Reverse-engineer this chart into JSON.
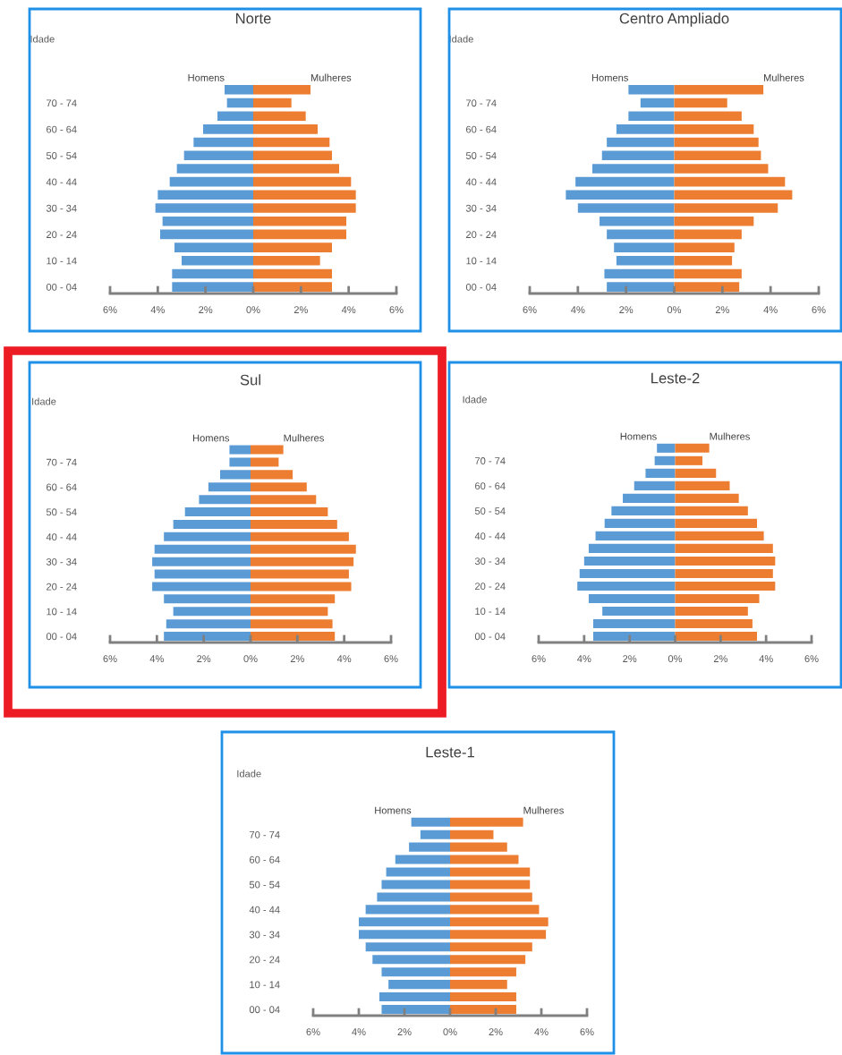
{
  "chart_data": [
    {
      "type": "bar",
      "orientation": "horizontal",
      "stacked": true,
      "title": "Norte",
      "ylabel": "Idade",
      "categories": [
        null,
        "70 - 74",
        null,
        "60 - 64",
        null,
        "50 - 54",
        null,
        "40 - 44",
        null,
        "30 - 34",
        null,
        "20 - 24",
        null,
        "10 - 14",
        null,
        "00 - 04"
      ],
      "series": [
        {
          "name": "Homens",
          "color": "#5b9bd5",
          "values": [
            -1.2,
            -1.1,
            -1.5,
            -2.1,
            -2.5,
            -2.9,
            -3.2,
            -3.5,
            -4.0,
            -4.1,
            -3.8,
            -3.9,
            -3.3,
            -3.0,
            -3.4,
            -3.4
          ]
        },
        {
          "name": "Mulheres",
          "color": "#ed7d31",
          "values": [
            2.4,
            1.6,
            2.2,
            2.7,
            3.2,
            3.3,
            3.6,
            4.1,
            4.3,
            4.3,
            3.9,
            3.9,
            3.3,
            2.8,
            3.3,
            3.3
          ]
        }
      ],
      "xlim": [
        -6,
        6
      ],
      "xticks": [
        {
          "value": -6,
          "label": "6%"
        },
        {
          "value": -4,
          "label": "4%"
        },
        {
          "value": -2,
          "label": "2%"
        },
        {
          "value": 0,
          "label": "0%"
        },
        {
          "value": 2,
          "label": "2%"
        },
        {
          "value": 4,
          "label": "4%"
        },
        {
          "value": 6,
          "label": "6%"
        }
      ]
    },
    {
      "type": "bar",
      "orientation": "horizontal",
      "stacked": true,
      "title": "Centro Ampliado",
      "ylabel": "Idade",
      "categories": [
        null,
        "70 - 74",
        null,
        "60 - 64",
        null,
        "50 - 54",
        null,
        "40 - 44",
        null,
        "30 - 34",
        null,
        "20 - 24",
        null,
        "10 - 14",
        null,
        "00 - 04"
      ],
      "series": [
        {
          "name": "Homens",
          "color": "#5b9bd5",
          "values": [
            -1.9,
            -1.4,
            -1.9,
            -2.4,
            -2.8,
            -3.0,
            -3.4,
            -4.1,
            -4.5,
            -4.0,
            -3.1,
            -2.8,
            -2.5,
            -2.4,
            -2.9,
            -2.8
          ]
        },
        {
          "name": "Mulheres",
          "color": "#ed7d31",
          "values": [
            3.7,
            2.2,
            2.8,
            3.3,
            3.5,
            3.6,
            3.9,
            4.6,
            4.9,
            4.3,
            3.3,
            2.8,
            2.5,
            2.4,
            2.8,
            2.7
          ]
        }
      ],
      "xlim": [
        -6,
        6
      ],
      "xticks": [
        {
          "value": -6,
          "label": "6%"
        },
        {
          "value": -4,
          "label": "4%"
        },
        {
          "value": -2,
          "label": "2%"
        },
        {
          "value": 0,
          "label": "0%"
        },
        {
          "value": 2,
          "label": "2%"
        },
        {
          "value": 4,
          "label": "4%"
        },
        {
          "value": 6,
          "label": "6%"
        }
      ]
    },
    {
      "type": "bar",
      "orientation": "horizontal",
      "stacked": true,
      "title": "Sul",
      "ylabel": "Idade",
      "categories": [
        null,
        "70 - 74",
        null,
        "60 - 64",
        null,
        "50 - 54",
        null,
        "40 - 44",
        null,
        "30 - 34",
        null,
        "20 - 24",
        null,
        "10 - 14",
        null,
        "00 - 04"
      ],
      "series": [
        {
          "name": "Homens",
          "color": "#5b9bd5",
          "values": [
            -0.9,
            -0.9,
            -1.3,
            -1.8,
            -2.2,
            -2.8,
            -3.3,
            -3.7,
            -4.1,
            -4.2,
            -4.1,
            -4.2,
            -3.7,
            -3.3,
            -3.6,
            -3.7
          ]
        },
        {
          "name": "Mulheres",
          "color": "#ed7d31",
          "values": [
            1.4,
            1.2,
            1.8,
            2.4,
            2.8,
            3.3,
            3.7,
            4.2,
            4.5,
            4.4,
            4.2,
            4.3,
            3.6,
            3.3,
            3.5,
            3.6
          ]
        }
      ],
      "xlim": [
        -6,
        6
      ],
      "xticks": [
        {
          "value": -6,
          "label": "6%"
        },
        {
          "value": -4,
          "label": "4%"
        },
        {
          "value": -2,
          "label": "2%"
        },
        {
          "value": 0,
          "label": "0%"
        },
        {
          "value": 2,
          "label": "2%"
        },
        {
          "value": 4,
          "label": "4%"
        },
        {
          "value": 6,
          "label": "6%"
        }
      ]
    },
    {
      "type": "bar",
      "orientation": "horizontal",
      "stacked": true,
      "title": "Leste-2",
      "ylabel": "Idade",
      "categories": [
        null,
        "70 - 74",
        null,
        "60 - 64",
        null,
        "50 - 54",
        null,
        "40 - 44",
        null,
        "30 - 34",
        null,
        "20 - 24",
        null,
        "10 - 14",
        null,
        "00 - 04"
      ],
      "series": [
        {
          "name": "Homens",
          "color": "#5b9bd5",
          "values": [
            -0.8,
            -0.9,
            -1.3,
            -1.8,
            -2.3,
            -2.8,
            -3.1,
            -3.5,
            -3.8,
            -4.0,
            -4.2,
            -4.3,
            -3.8,
            -3.2,
            -3.6,
            -3.6
          ]
        },
        {
          "name": "Mulheres",
          "color": "#ed7d31",
          "values": [
            1.5,
            1.2,
            1.8,
            2.4,
            2.8,
            3.2,
            3.6,
            3.9,
            4.3,
            4.4,
            4.3,
            4.4,
            3.7,
            3.2,
            3.4,
            3.6
          ]
        }
      ],
      "xlim": [
        -6,
        6
      ],
      "xticks": [
        {
          "value": -6,
          "label": "6%"
        },
        {
          "value": -4,
          "label": "4%"
        },
        {
          "value": -2,
          "label": "2%"
        },
        {
          "value": 0,
          "label": "0%"
        },
        {
          "value": 2,
          "label": "2%"
        },
        {
          "value": 4,
          "label": "4%"
        },
        {
          "value": 6,
          "label": "6%"
        }
      ]
    },
    {
      "type": "bar",
      "orientation": "horizontal",
      "stacked": true,
      "title": "Leste-1",
      "ylabel": "Idade",
      "categories": [
        null,
        "70 - 74",
        null,
        "60 - 64",
        null,
        "50 - 54",
        null,
        "40 - 44",
        null,
        "30 - 34",
        null,
        "20 - 24",
        null,
        "10 - 14",
        null,
        "00 - 04"
      ],
      "series": [
        {
          "name": "Homens",
          "color": "#5b9bd5",
          "values": [
            -1.7,
            -1.3,
            -1.8,
            -2.4,
            -2.8,
            -3.0,
            -3.2,
            -3.7,
            -4.0,
            -4.0,
            -3.7,
            -3.4,
            -3.0,
            -2.7,
            -3.1,
            -3.0
          ]
        },
        {
          "name": "Mulheres",
          "color": "#ed7d31",
          "values": [
            3.2,
            1.9,
            2.5,
            3.0,
            3.5,
            3.5,
            3.6,
            3.9,
            4.3,
            4.2,
            3.6,
            3.3,
            2.9,
            2.5,
            2.9,
            2.9
          ]
        }
      ],
      "xlim": [
        -6,
        6
      ],
      "xticks": [
        {
          "value": -6,
          "label": "6%"
        },
        {
          "value": -4,
          "label": "4%"
        },
        {
          "value": -2,
          "label": "2%"
        },
        {
          "value": 0,
          "label": "0%"
        },
        {
          "value": 2,
          "label": "2%"
        },
        {
          "value": 4,
          "label": "4%"
        },
        {
          "value": 6,
          "label": "6%"
        }
      ]
    }
  ]
}
